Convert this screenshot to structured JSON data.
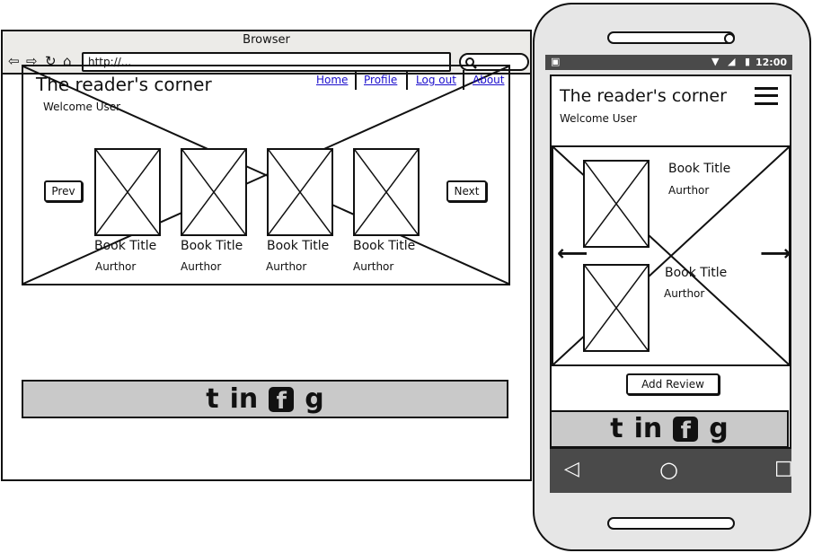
{
  "browser": {
    "window_title": "Browser",
    "url": "http://...",
    "nav_icons": [
      "back-icon",
      "forward-icon",
      "reload-icon",
      "home-icon"
    ]
  },
  "site": {
    "title": "The reader's corner",
    "welcome": "Welcome User",
    "nav": [
      "Home",
      "Profile",
      "Log out",
      "About"
    ],
    "prev_label": "Prev",
    "next_label": "Next",
    "books": [
      {
        "title": "Book Title",
        "author": "Aurthor"
      },
      {
        "title": "Book Title",
        "author": "Aurthor"
      },
      {
        "title": "Book Title",
        "author": "Aurthor"
      },
      {
        "title": "Book Title",
        "author": "Aurthor"
      }
    ],
    "social_icons": [
      "twitter-icon",
      "linkedin-icon",
      "facebook-icon",
      "google-icon"
    ],
    "social_glyphs": [
      "t",
      "in",
      "f",
      "g"
    ]
  },
  "phone": {
    "clock": "12:00",
    "title": "The reader's corner",
    "welcome": "Welcome User",
    "books": [
      {
        "title": "Book Title",
        "author": "Aurthor"
      },
      {
        "title": "Book Title",
        "author": "Aurthor"
      }
    ],
    "add_review_label": "Add Review",
    "nav_glyphs": [
      "◁",
      "○",
      "□"
    ]
  },
  "colors": {
    "footer": "#c9c9c9",
    "link": "#1a0dcc",
    "status_bar": "#4a4a4a",
    "browser_chrome": "#ecebe8"
  }
}
